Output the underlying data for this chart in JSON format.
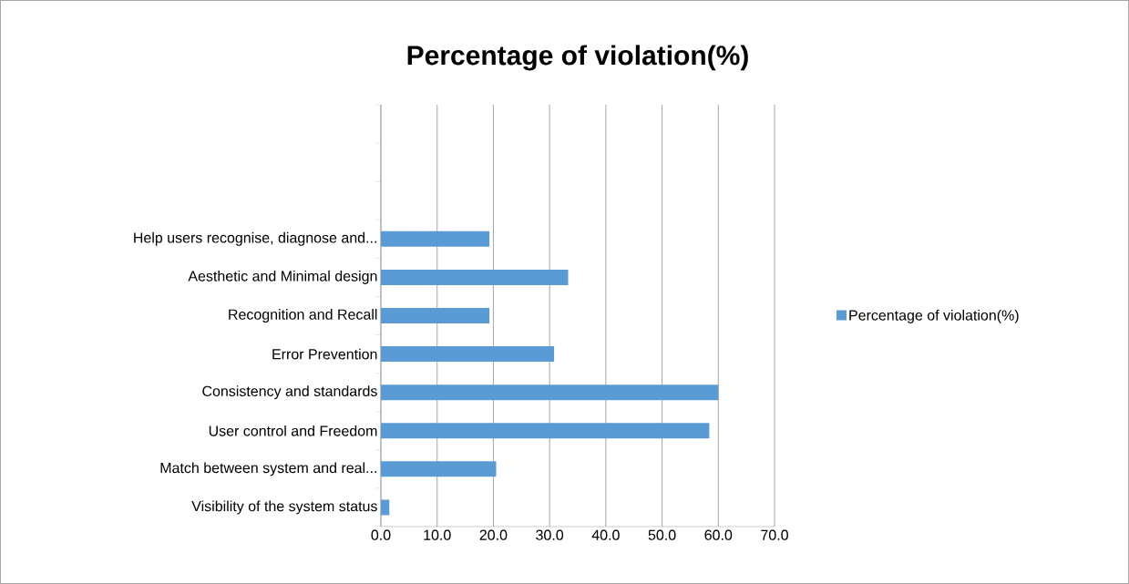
{
  "chart_data": {
    "type": "bar",
    "orientation": "horizontal",
    "title": "Percentage of violation(%)",
    "categories": [
      null,
      null,
      null,
      "Help users recognise, diagnose and...",
      "Aesthetic and Minimal design",
      "Recognition and Recall",
      "Error Prevention",
      "Consistency and standards",
      "User control and Freedom",
      "Match between system and real...",
      "Visibility of the system status"
    ],
    "series": [
      {
        "name": "Percentage of violation(%)",
        "color": "#5b9bd5",
        "values": [
          null,
          null,
          null,
          19.3,
          33.3,
          19.3,
          30.8,
          60.0,
          58.4,
          20.5,
          1.5
        ]
      }
    ],
    "xlim": [
      0,
      70
    ],
    "xticks": [
      {
        "value": 0,
        "label": "0.0"
      },
      {
        "value": 10,
        "label": "10.0"
      },
      {
        "value": 20,
        "label": "20.0"
      },
      {
        "value": 30,
        "label": "30.0"
      },
      {
        "value": 40,
        "label": "40.0"
      },
      {
        "value": 50,
        "label": "50.0"
      },
      {
        "value": 60,
        "label": "60.0"
      },
      {
        "value": 70,
        "label": "70.0"
      }
    ],
    "grid": "x",
    "legend": "right"
  }
}
